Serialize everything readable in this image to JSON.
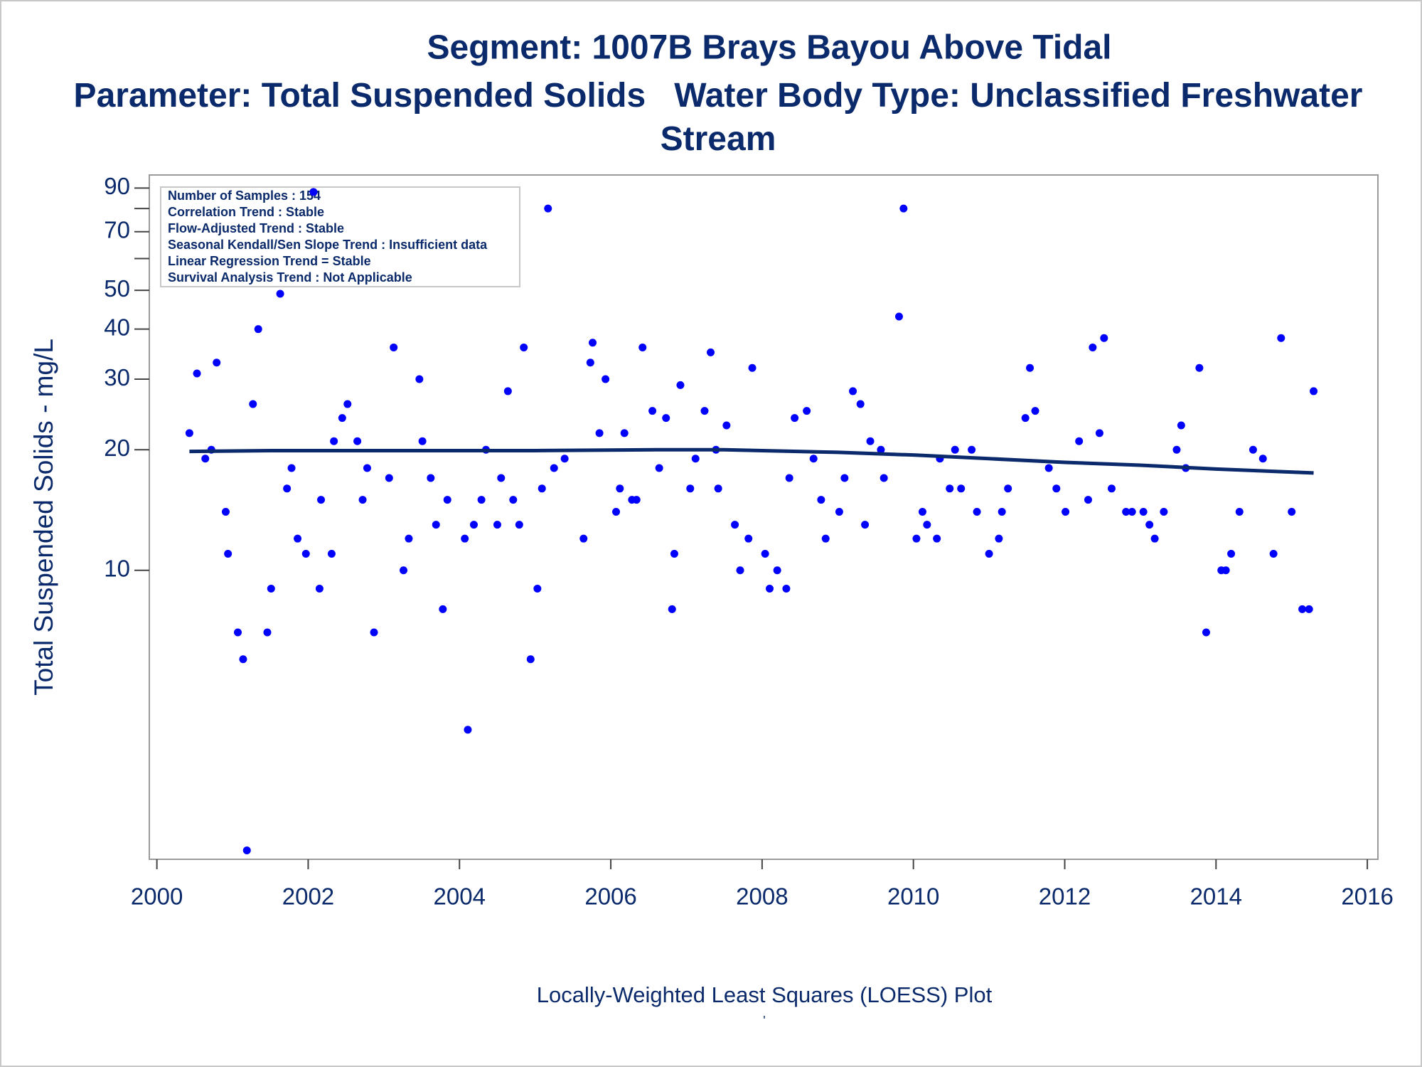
{
  "chart_data": {
    "type": "scatter",
    "title": "Segment: 1007B  Brays Bayou Above Tidal",
    "subtitle": "Parameter: Total Suspended Solids   Water Body Type: Unclassified Freshwater Stream",
    "ylabel": "Total Suspended Solids - mg/L",
    "footnote": "Locally-Weighted Least Squares (LOESS) Plot",
    "footnote_mark": "'",
    "annotations": [
      "Number of Samples : 154",
      "Correlation Trend : Stable",
      "Flow-Adjusted Trend : Stable",
      "Seasonal Kendall/Sen Slope Trend : Insufficient data",
      "Linear Regression Trend = Stable",
      "Survival Analysis Trend : Not Applicable"
    ],
    "yscale": "log",
    "xlim": [
      1999.9,
      2016.14
    ],
    "xticks": [
      2000,
      2002,
      2004,
      2006,
      2008,
      2010,
      2012,
      2014,
      2016
    ],
    "ylim": [
      1.9,
      97
    ],
    "yticks": [
      10,
      20,
      30,
      40,
      50,
      70,
      90
    ],
    "yticks_minor": [
      60,
      80
    ],
    "series": [
      {
        "style": "markers",
        "color": "#0000ff",
        "x": [
          2000.43,
          2000.53,
          2000.64,
          2000.72,
          2000.79,
          2000.91,
          2000.94,
          2001.07,
          2001.14,
          2001.19,
          2001.27,
          2001.34,
          2001.46,
          2001.51,
          2001.63,
          2001.72,
          2001.78,
          2001.86,
          2001.97,
          2002.07,
          2002.15,
          2002.17,
          2002.31,
          2002.34,
          2002.45,
          2002.52,
          2002.65,
          2002.72,
          2002.78,
          2002.87,
          2003.07,
          2003.13,
          2003.26,
          2003.33,
          2003.47,
          2003.51,
          2003.62,
          2003.69,
          2003.78,
          2003.84,
          2004.07,
          2004.11,
          2004.19,
          2004.29,
          2004.35,
          2004.5,
          2004.55,
          2004.64,
          2004.71,
          2004.79,
          2004.85,
          2004.94,
          2005.03,
          2005.09,
          2005.17,
          2005.25,
          2005.39,
          2005.64,
          2005.73,
          2005.76,
          2005.85,
          2005.93,
          2006.07,
          2006.12,
          2006.18,
          2006.28,
          2006.34,
          2006.42,
          2006.55,
          2006.64,
          2006.73,
          2006.81,
          2006.84,
          2006.92,
          2007.05,
          2007.12,
          2007.24,
          2007.32,
          2007.39,
          2007.42,
          2007.53,
          2007.64,
          2007.71,
          2007.82,
          2007.87,
          2008.04,
          2008.1,
          2008.2,
          2008.32,
          2008.36,
          2008.43,
          2008.59,
          2008.68,
          2008.78,
          2008.84,
          2009.02,
          2009.09,
          2009.2,
          2009.3,
          2009.36,
          2009.43,
          2009.57,
          2009.61,
          2009.81,
          2009.87,
          2010.04,
          2010.12,
          2010.18,
          2010.31,
          2010.35,
          2010.48,
          2010.55,
          2010.63,
          2010.77,
          2010.84,
          2011.0,
          2011.13,
          2011.17,
          2011.25,
          2011.48,
          2011.54,
          2011.61,
          2011.79,
          2011.89,
          2012.01,
          2012.19,
          2012.31,
          2012.37,
          2012.46,
          2012.52,
          2012.62,
          2012.81,
          2012.89,
          2013.04,
          2013.12,
          2013.19,
          2013.31,
          2013.48,
          2013.54,
          2013.6,
          2013.78,
          2013.87,
          2014.07,
          2014.13,
          2014.2,
          2014.31,
          2014.49,
          2014.62,
          2014.76,
          2014.86,
          2015.0,
          2015.14,
          2015.23,
          2015.29
        ],
        "values": [
          22,
          31,
          19,
          20,
          33,
          14,
          11,
          7,
          6,
          2,
          26,
          40,
          7,
          9,
          49,
          16,
          18,
          12,
          11,
          88,
          9,
          15,
          11,
          21,
          24,
          26,
          21,
          15,
          18,
          7,
          17,
          36,
          10,
          12,
          30,
          21,
          17,
          13,
          8,
          15,
          12,
          4,
          13,
          15,
          20,
          13,
          17,
          28,
          15,
          13,
          36,
          6,
          9,
          16,
          80,
          18,
          19,
          12,
          33,
          37,
          22,
          30,
          14,
          16,
          22,
          15,
          15,
          36,
          25,
          18,
          24,
          8,
          11,
          29,
          16,
          19,
          25,
          35,
          20,
          16,
          23,
          13,
          10,
          12,
          32,
          11,
          9,
          10,
          9,
          17,
          24,
          25,
          19,
          15,
          12,
          14,
          17,
          28,
          26,
          13,
          21,
          20,
          17,
          43,
          80,
          12,
          14,
          13,
          12,
          19,
          16,
          20,
          16,
          20,
          14,
          11,
          12,
          14,
          16,
          24,
          32,
          25,
          18,
          16,
          14,
          21,
          15,
          36,
          22,
          38,
          16,
          14,
          14,
          14,
          13,
          12,
          14,
          20,
          23,
          18,
          32,
          7,
          10,
          10,
          11,
          14,
          20,
          19,
          11,
          38,
          14,
          8,
          8,
          28
        ]
      },
      {
        "style": "line",
        "color": "#0b2a6b",
        "x": [
          2000.43,
          2001.5,
          2003,
          2005,
          2006.6,
          2007.5,
          2008,
          2009,
          2010,
          2011,
          2012,
          2013,
          2014,
          2015.29
        ],
        "values": [
          19.8,
          19.9,
          19.9,
          19.9,
          20.0,
          20.0,
          19.9,
          19.7,
          19.4,
          19.0,
          18.6,
          18.3,
          17.9,
          17.5
        ]
      }
    ]
  }
}
